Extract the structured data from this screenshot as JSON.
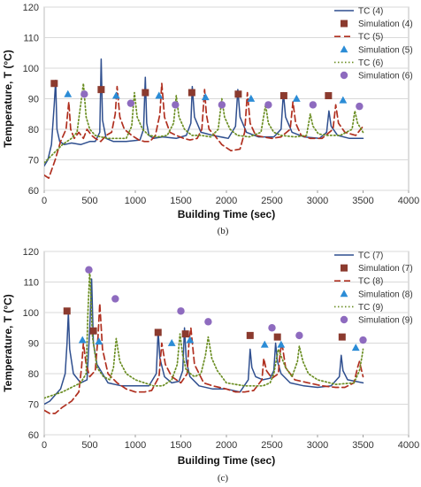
{
  "chart_data": [
    {
      "type": "line",
      "panel_label": "(b)",
      "xlabel": "Building Time (sec)",
      "ylabel": "Temperature, T (°C)",
      "xlim": [
        0,
        4000
      ],
      "ylim": [
        60,
        120
      ],
      "xticks": [
        0,
        500,
        1000,
        1500,
        2000,
        2500,
        3000,
        3500,
        4000
      ],
      "yticks": [
        60,
        70,
        80,
        90,
        100,
        110,
        120
      ],
      "grid": "horizontal",
      "legend_position": "top-right",
      "series": [
        {
          "name": "TC (4)",
          "kind": "line",
          "color": "#2f4f8f",
          "dash": "solid",
          "x": [
            0,
            40,
            80,
            110,
            125,
            140,
            170,
            220,
            300,
            400,
            500,
            560,
            610,
            625,
            640,
            680,
            760,
            900,
            1050,
            1090,
            1110,
            1125,
            1150,
            1200,
            1300,
            1450,
            1560,
            1610,
            1625,
            1650,
            1720,
            1850,
            2020,
            2100,
            2125,
            2150,
            2220,
            2350,
            2520,
            2600,
            2625,
            2650,
            2720,
            2850,
            3020,
            3100,
            3125,
            3150,
            3220,
            3350,
            3500
          ],
          "y": [
            68,
            70,
            75,
            88,
            96,
            80,
            76,
            75,
            75.5,
            75,
            76,
            76,
            79,
            103,
            83,
            77,
            76,
            76,
            76.5,
            80,
            97,
            82,
            78,
            77,
            77.5,
            77,
            78,
            82,
            94,
            84,
            79,
            78,
            77,
            81,
            93,
            84,
            79,
            77.5,
            77.5,
            80,
            92,
            84,
            79,
            77.5,
            77,
            79,
            86,
            81,
            78,
            77,
            77
          ]
        },
        {
          "name": "Simulation (4)",
          "kind": "marker",
          "marker": "square",
          "color": "#8b3a2e",
          "x": [
            110,
            625,
            1110,
            1620,
            2130,
            2630,
            3120
          ],
          "y": [
            95,
            93,
            92,
            92,
            91.5,
            91,
            91
          ]
        },
        {
          "name": "TC (5)",
          "kind": "line",
          "color": "#b03020",
          "dash": "dashed",
          "x": [
            0,
            50,
            120,
            180,
            240,
            270,
            290,
            330,
            380,
            430,
            470,
            520,
            560,
            620,
            680,
            740,
            780,
            800,
            830,
            880,
            960,
            1040,
            1100,
            1160,
            1220,
            1270,
            1290,
            1320,
            1380,
            1450,
            1530,
            1600,
            1680,
            1730,
            1760,
            1780,
            1810,
            1870,
            1950,
            2050,
            2150,
            2200,
            2230,
            2260,
            2320,
            2400,
            2500,
            2600,
            2700,
            2730,
            2760,
            2820,
            2920,
            3050,
            3170,
            3200,
            3230,
            3300,
            3420,
            3500
          ],
          "y": [
            65,
            64,
            70,
            76,
            80,
            89,
            80,
            77,
            79,
            77,
            80,
            78,
            77,
            76,
            78,
            79,
            85,
            94,
            84,
            80,
            78,
            76.5,
            76,
            76,
            78,
            85,
            95,
            84,
            79,
            78,
            77,
            76.5,
            77,
            80,
            93,
            85,
            80,
            78,
            75,
            73,
            73.5,
            79,
            92,
            82,
            78,
            77.5,
            77,
            77.5,
            80,
            89,
            82,
            78,
            77,
            77,
            80,
            88,
            82,
            79,
            78,
            81
          ]
        },
        {
          "name": "Simulation (5)",
          "kind": "marker",
          "marker": "triangle",
          "color": "#2b8cd6",
          "x": [
            260,
            790,
            1260,
            1770,
            2270,
            2770,
            3280
          ],
          "y": [
            91.5,
            91,
            91,
            90.5,
            90,
            90,
            89.5
          ]
        },
        {
          "name": "TC (6)",
          "kind": "line",
          "color": "#6b8e23",
          "dash": "dotted",
          "x": [
            0,
            100,
            200,
            300,
            360,
            400,
            430,
            460,
            500,
            560,
            620,
            700,
            800,
            900,
            960,
            990,
            1020,
            1080,
            1150,
            1250,
            1350,
            1420,
            1450,
            1480,
            1540,
            1620,
            1720,
            1830,
            1910,
            1950,
            1980,
            2040,
            2120,
            2250,
            2380,
            2430,
            2460,
            2520,
            2600,
            2750,
            2880,
            2920,
            2950,
            3010,
            3100,
            3250,
            3380,
            3410,
            3440,
            3500
          ],
          "y": [
            69,
            72,
            75,
            77,
            79,
            88,
            95,
            84,
            80,
            78,
            77.5,
            77,
            77,
            77,
            81,
            92,
            84,
            80,
            78,
            77.5,
            78,
            82,
            91,
            84,
            80,
            78,
            78,
            77.5,
            80,
            90,
            84,
            80,
            78,
            77.5,
            79,
            88,
            82,
            79,
            78,
            77.5,
            78,
            85,
            81,
            78.5,
            78,
            78,
            80,
            86,
            82,
            79
          ]
        },
        {
          "name": "Simulation (6)",
          "kind": "marker",
          "marker": "circle",
          "color": "#8e6bbf",
          "x": [
            440,
            950,
            1440,
            1950,
            2460,
            2950,
            3460
          ],
          "y": [
            91.5,
            88.5,
            88,
            88,
            88,
            88,
            87.5
          ]
        }
      ]
    },
    {
      "type": "line",
      "panel_label": "(c)",
      "xlabel": "Building Time (sec)",
      "ylabel": "Temperature, T (°C)",
      "xlim": [
        0,
        4000
      ],
      "ylim": [
        60,
        120
      ],
      "xticks": [
        0,
        500,
        1000,
        1500,
        2000,
        2500,
        3000,
        3500,
        4000
      ],
      "yticks": [
        60,
        70,
        80,
        90,
        100,
        110,
        120
      ],
      "grid": "horizontal",
      "legend_position": "top-right",
      "series": [
        {
          "name": "TC (7)",
          "kind": "line",
          "color": "#2f4f8f",
          "dash": "solid",
          "x": [
            0,
            60,
            120,
            180,
            230,
            250,
            265,
            280,
            320,
            400,
            470,
            500,
            520,
            540,
            580,
            700,
            850,
            1000,
            1150,
            1230,
            1250,
            1270,
            1320,
            1400,
            1480,
            1520,
            1540,
            1560,
            1600,
            1700,
            1850,
            2000,
            2150,
            2240,
            2260,
            2280,
            2320,
            2400,
            2480,
            2520,
            2540,
            2560,
            2600,
            2700,
            2850,
            3000,
            3150,
            3240,
            3260,
            3280,
            3330,
            3500
          ],
          "y": [
            70,
            71,
            73,
            75,
            80,
            90,
            100,
            88,
            80,
            77,
            78,
            95,
            111,
            90,
            83,
            77,
            76,
            76,
            76,
            80,
            94,
            85,
            79,
            77,
            77.5,
            81,
            95,
            84,
            79,
            76,
            75,
            75,
            74,
            78,
            88,
            82,
            79,
            78,
            78.5,
            81,
            90,
            84,
            80,
            77,
            76,
            75.5,
            76,
            79,
            86,
            81,
            78,
            77
          ]
        },
        {
          "name": "Simulation (7)",
          "kind": "marker",
          "marker": "square",
          "color": "#8b3a2e",
          "x": [
            250,
            540,
            1250,
            1550,
            2260,
            2560,
            3270
          ],
          "y": [
            100.5,
            94,
            93.5,
            93,
            92.5,
            92,
            92
          ]
        },
        {
          "name": "TC (8)",
          "kind": "line",
          "color": "#b03020",
          "dash": "dashed",
          "x": [
            0,
            60,
            120,
            200,
            300,
            380,
            410,
            430,
            460,
            500,
            560,
            590,
            610,
            640,
            700,
            800,
            900,
            1000,
            1100,
            1180,
            1260,
            1290,
            1330,
            1400,
            1500,
            1570,
            1590,
            1610,
            1650,
            1750,
            1850,
            2000,
            2100,
            2200,
            2300,
            2390,
            2410,
            2440,
            2500,
            2570,
            2590,
            2610,
            2650,
            2750,
            2900,
            3050,
            3200,
            3300,
            3400,
            3440,
            3460,
            3500
          ],
          "y": [
            68,
            67,
            67,
            69,
            71,
            74,
            82,
            90,
            83,
            79,
            81,
            92,
            103,
            88,
            80,
            77,
            75,
            74,
            74,
            74.5,
            79,
            90,
            83,
            79,
            77,
            80,
            91,
            95,
            83,
            77,
            76,
            75,
            74,
            74,
            74.5,
            78,
            85,
            81,
            78.5,
            80,
            87,
            90,
            82,
            78,
            77,
            76,
            75.5,
            75.5,
            77,
            82,
            84,
            79
          ]
        },
        {
          "name": "Simulation (8)",
          "kind": "marker",
          "marker": "triangle",
          "color": "#2b8cd6",
          "x": [
            420,
            600,
            1400,
            1600,
            2420,
            2600,
            3420
          ],
          "y": [
            91,
            90.5,
            90,
            91,
            89.5,
            89.5,
            88.5
          ]
        },
        {
          "name": "TC (9)",
          "kind": "line",
          "color": "#6b8e23",
          "dash": "dotted",
          "x": [
            0,
            100,
            200,
            300,
            400,
            460,
            480,
            500,
            530,
            580,
            650,
            720,
            760,
            790,
            830,
            900,
            1000,
            1100,
            1200,
            1300,
            1400,
            1460,
            1490,
            1520,
            1560,
            1650,
            1720,
            1770,
            1800,
            1840,
            1900,
            2000,
            2200,
            2400,
            2480,
            2520,
            2570,
            2650,
            2720,
            2780,
            2800,
            2840,
            2900,
            3000,
            3200,
            3400,
            3460,
            3490,
            3500
          ],
          "y": [
            72,
            73,
            74,
            75.5,
            77,
            80,
            100,
            114,
            92,
            82,
            79,
            78,
            82,
            91.5,
            84,
            80,
            78,
            77,
            76,
            76,
            78,
            83,
            93,
            86,
            81,
            79,
            80,
            86,
            92,
            85,
            81,
            77,
            76,
            76,
            77,
            80,
            88,
            82,
            79,
            84,
            89,
            84,
            80,
            78,
            76.5,
            77,
            81,
            86,
            88
          ]
        },
        {
          "name": "Simulation (9)",
          "kind": "marker",
          "marker": "circle",
          "color": "#8e6bbf",
          "x": [
            490,
            780,
            1500,
            1800,
            2500,
            2800,
            3500
          ],
          "y": [
            114,
            104.5,
            100.5,
            97,
            95,
            92.5,
            91
          ]
        }
      ]
    }
  ]
}
